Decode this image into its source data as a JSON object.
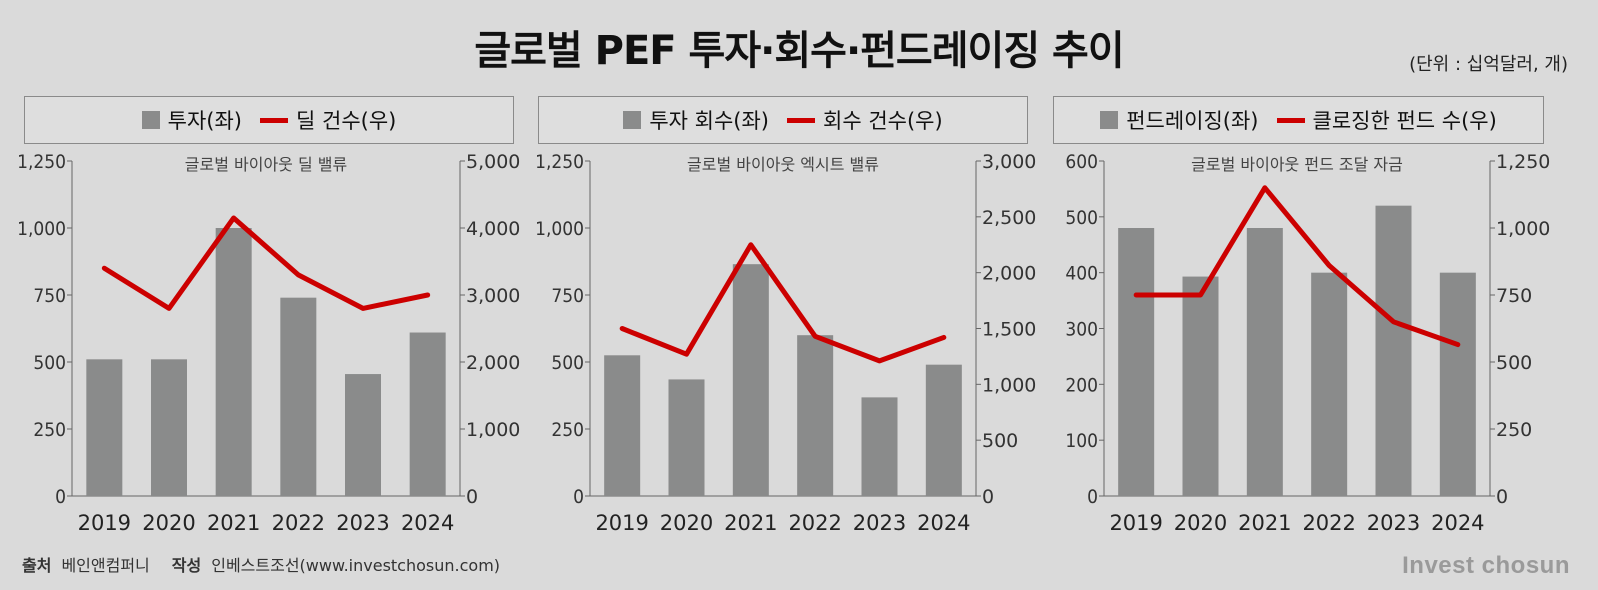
{
  "title": "글로벌 PEF 투자·회수·펀드레이징 추이",
  "unit": "(단위 : 십억달러, 개)",
  "source": {
    "source_label": "출처",
    "source_value": "베인앤컴퍼니",
    "author_label": "작성",
    "author_value": "인베스트조선(www.investchosun.com)"
  },
  "brand": "Invest chosun",
  "colors": {
    "bar": "#8a8b8b",
    "line": "#cc0000",
    "background": "#dadada"
  },
  "chart_data": [
    {
      "type": "bar",
      "subtitle": "글로벌 바이아웃 딜 밸류",
      "legend": {
        "bar": "투자(좌)",
        "line": "딜 건수(우)"
      },
      "categories": [
        "2019",
        "2020",
        "2021",
        "2022",
        "2023",
        "2024"
      ],
      "left_axis": {
        "range": [
          0,
          1250
        ],
        "ticks": [
          "0",
          "250",
          "500",
          "750",
          "1,000",
          "1,250"
        ]
      },
      "right_axis": {
        "range": [
          0,
          5000
        ],
        "ticks": [
          "0",
          "1,000",
          "2,000",
          "3,000",
          "4,000",
          "5,000"
        ]
      },
      "series": [
        {
          "name": "투자(좌)",
          "type": "bar",
          "axis": "left",
          "values": [
            510,
            510,
            1000,
            740,
            455,
            610
          ]
        },
        {
          "name": "딜 건수(우)",
          "type": "line",
          "axis": "right",
          "values": [
            3400,
            2800,
            4150,
            3300,
            2800,
            3000
          ]
        }
      ]
    },
    {
      "type": "bar",
      "subtitle": "글로벌 바이아웃 엑시트 밸류",
      "legend": {
        "bar": "투자 회수(좌)",
        "line": "회수 건수(우)"
      },
      "categories": [
        "2019",
        "2020",
        "2021",
        "2022",
        "2023",
        "2024"
      ],
      "left_axis": {
        "range": [
          0,
          1250
        ],
        "ticks": [
          "0",
          "250",
          "500",
          "750",
          "1,000",
          "1,250"
        ]
      },
      "right_axis": {
        "range": [
          0,
          3000
        ],
        "ticks": [
          "0",
          "500",
          "1,000",
          "1,500",
          "2,000",
          "2,500",
          "3,000"
        ]
      },
      "series": [
        {
          "name": "투자 회수(좌)",
          "type": "bar",
          "axis": "left",
          "values": [
            525,
            435,
            865,
            600,
            368,
            490
          ]
        },
        {
          "name": "회수 건수(우)",
          "type": "line",
          "axis": "right",
          "values": [
            1500,
            1270,
            2250,
            1430,
            1210,
            1420
          ]
        }
      ]
    },
    {
      "type": "bar",
      "subtitle": "글로벌 바이아웃 펀드 조달 자금",
      "legend": {
        "bar": "펀드레이징(좌)",
        "line": "클로징한 펀드 수(우)"
      },
      "categories": [
        "2019",
        "2020",
        "2021",
        "2022",
        "2023",
        "2024"
      ],
      "left_axis": {
        "range": [
          0,
          600
        ],
        "ticks": [
          "0",
          "100",
          "200",
          "300",
          "400",
          "500",
          "600"
        ]
      },
      "right_axis": {
        "range": [
          0,
          1250
        ],
        "ticks": [
          "0",
          "250",
          "500",
          "750",
          "1,000",
          "1,250"
        ]
      },
      "series": [
        {
          "name": "펀드레이징(좌)",
          "type": "bar",
          "axis": "left",
          "values": [
            480,
            393,
            480,
            400,
            520,
            400
          ]
        },
        {
          "name": "클로징한 펀드 수(우)",
          "type": "line",
          "axis": "right",
          "values": [
            750,
            750,
            1150,
            860,
            650,
            565
          ]
        }
      ]
    }
  ]
}
